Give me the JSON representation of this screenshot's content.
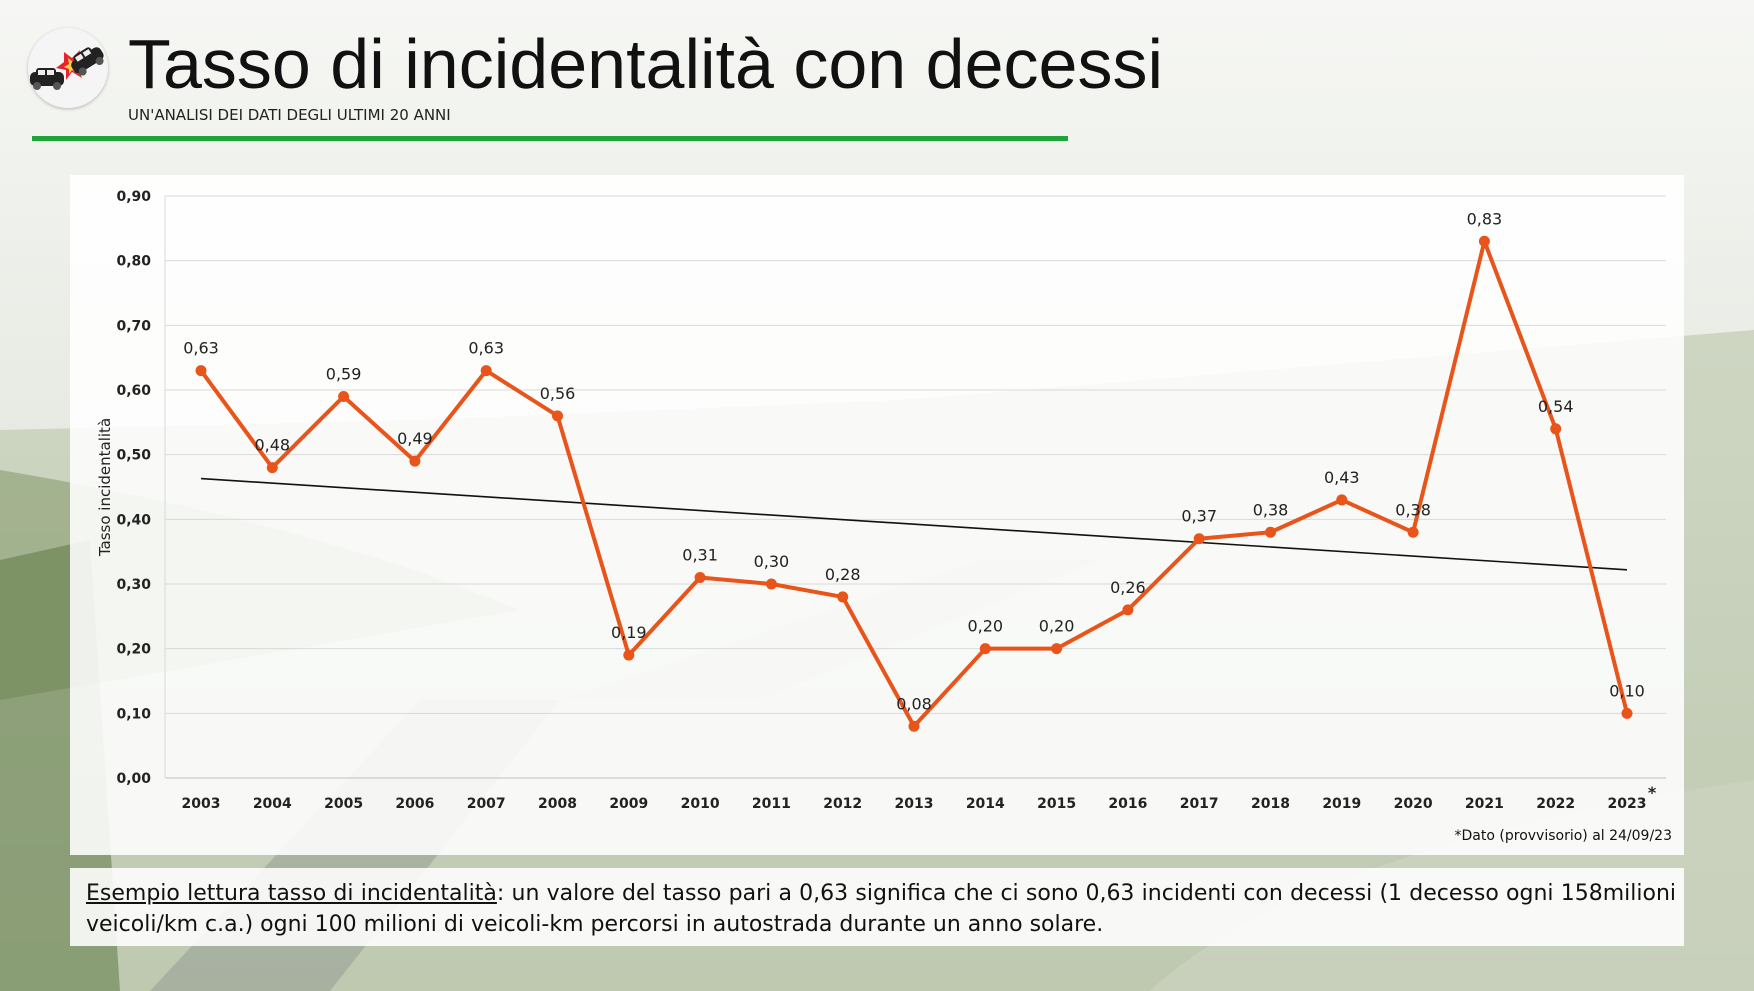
{
  "title": "Tasso di incidentalità con decessi",
  "subtitle": "UN'ANALISI DEI DATI DEGLI ULTIMI 20 ANNI",
  "logo": {
    "icon": "car-crash-icon"
  },
  "colors": {
    "series": "#e8541a",
    "trend": "#111111",
    "rule": "#1fa33a"
  },
  "chart_data": {
    "type": "line",
    "ylabel": "Tasso incidentalità",
    "xlabel": "",
    "ylim": [
      0,
      0.9
    ],
    "y_ticks": [
      "0,00",
      "0,10",
      "0,20",
      "0,30",
      "0,40",
      "0,50",
      "0,60",
      "0,70",
      "0,80",
      "0,90"
    ],
    "grid": true,
    "categories": [
      "2003",
      "2004",
      "2005",
      "2006",
      "2007",
      "2008",
      "2009",
      "2010",
      "2011",
      "2012",
      "2013",
      "2014",
      "2015",
      "2016",
      "2017",
      "2018",
      "2019",
      "2020",
      "2021",
      "2022",
      "2023"
    ],
    "values": [
      0.63,
      0.48,
      0.59,
      0.49,
      0.63,
      0.56,
      0.19,
      0.31,
      0.3,
      0.28,
      0.08,
      0.2,
      0.2,
      0.26,
      0.37,
      0.38,
      0.43,
      0.38,
      0.83,
      0.54,
      0.1
    ],
    "labels": [
      "0,63",
      "0,48",
      "0,59",
      "0,49",
      "0,63",
      "0,56",
      "0,19",
      "0,31",
      "0,30",
      "0,28",
      "0,08",
      "0,20",
      "0,20",
      "0,26",
      "0,37",
      "0,38",
      "0,43",
      "0,38",
      "0,83",
      "0,54",
      "0,10"
    ],
    "trendline": {
      "start": 0.463,
      "end": 0.322
    },
    "category_marker": {
      "category": "2023",
      "symbol": "*"
    }
  },
  "footnote": "*Dato (provvisorio) al 24/09/23",
  "note": {
    "lead": "Esempio lettura tasso di incidentalità",
    "text": ": un valore del tasso pari a 0,63 significa che ci sono 0,63 incidenti con decessi (1 decesso ogni 158milioni veicoli/km c.a.) ogni 100 milioni di veicoli-km percorsi in autostrada durante un anno solare."
  }
}
